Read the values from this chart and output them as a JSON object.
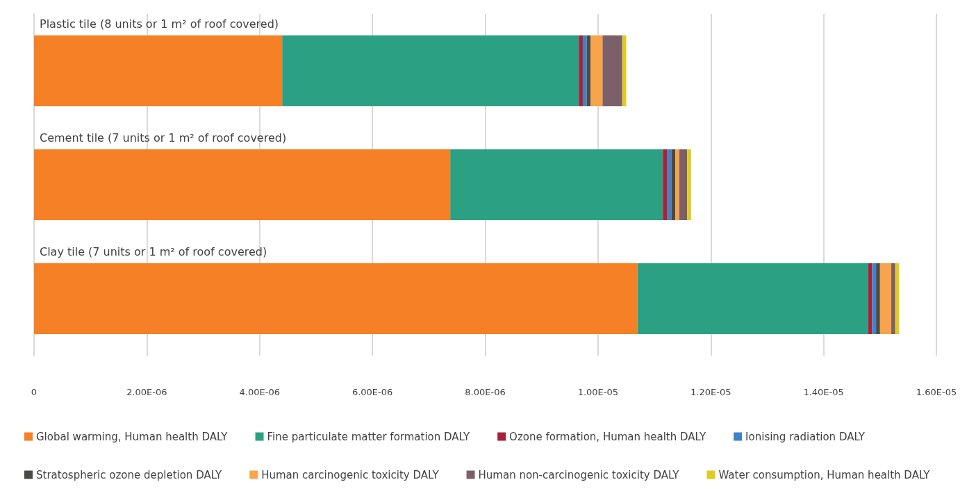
{
  "chart_data": {
    "type": "bar",
    "orientation": "horizontal",
    "stacked": true,
    "categories": [
      "Plastic tile (8 units or 1 m² of roof covered)",
      "Cement tile (7 units or 1 m² of roof covered)",
      "Clay tile (7 units or 1 m² of roof covered)"
    ],
    "series": [
      {
        "name": "Global warming, Human health DALY",
        "color": "#f58025",
        "values": [
          4.4e-06,
          7.38e-06,
          1.07e-05
        ]
      },
      {
        "name": "Fine particulate matter formation DALY",
        "color": "#2ca083",
        "values": [
          5.26e-06,
          3.77e-06,
          4.09e-06
        ]
      },
      {
        "name": "Ozone formation, Human health DALY",
        "color": "#a8203a",
        "values": [
          7e-08,
          8e-08,
          7e-08
        ]
      },
      {
        "name": "Ionising radiation DALY",
        "color": "#3e82c8",
        "values": [
          7e-08,
          7e-08,
          7e-08
        ]
      },
      {
        "name": "Stratospheric ozone depletion DALY",
        "color": "#4a4b45",
        "values": [
          7e-08,
          7e-08,
          7e-08
        ]
      },
      {
        "name": "Human carcinogenic toxicity DALY",
        "color": "#f9a34a",
        "values": [
          2.1e-07,
          7e-08,
          2e-07
        ]
      },
      {
        "name": "Human non-carcinogenic toxicity DALY",
        "color": "#7c6069",
        "values": [
          3.5e-07,
          1.4e-07,
          7e-08
        ]
      },
      {
        "name": "Water consumption, Human health DALY",
        "color": "#e0cb22",
        "values": [
          7e-08,
          7e-08,
          7e-08
        ]
      }
    ],
    "xlim": [
      0,
      1.6e-05
    ],
    "xticks": [
      0,
      {
        "value": 2e-06,
        "label": "2.00E-06"
      },
      {
        "value": 4e-06,
        "label": "4.00E-06"
      },
      {
        "value": 6e-06,
        "label": "6.00E-06"
      },
      {
        "value": 8e-06,
        "label": "8.00E-06"
      },
      {
        "value": 1e-05,
        "label": "1.00E-05"
      },
      {
        "value": 1.2e-05,
        "label": "1.20E-05"
      },
      {
        "value": 1.4e-05,
        "label": "1.40E-05"
      },
      {
        "value": 1.6e-05,
        "label": "1.60E-05"
      }
    ],
    "grid": "x",
    "legend": "bottom"
  }
}
